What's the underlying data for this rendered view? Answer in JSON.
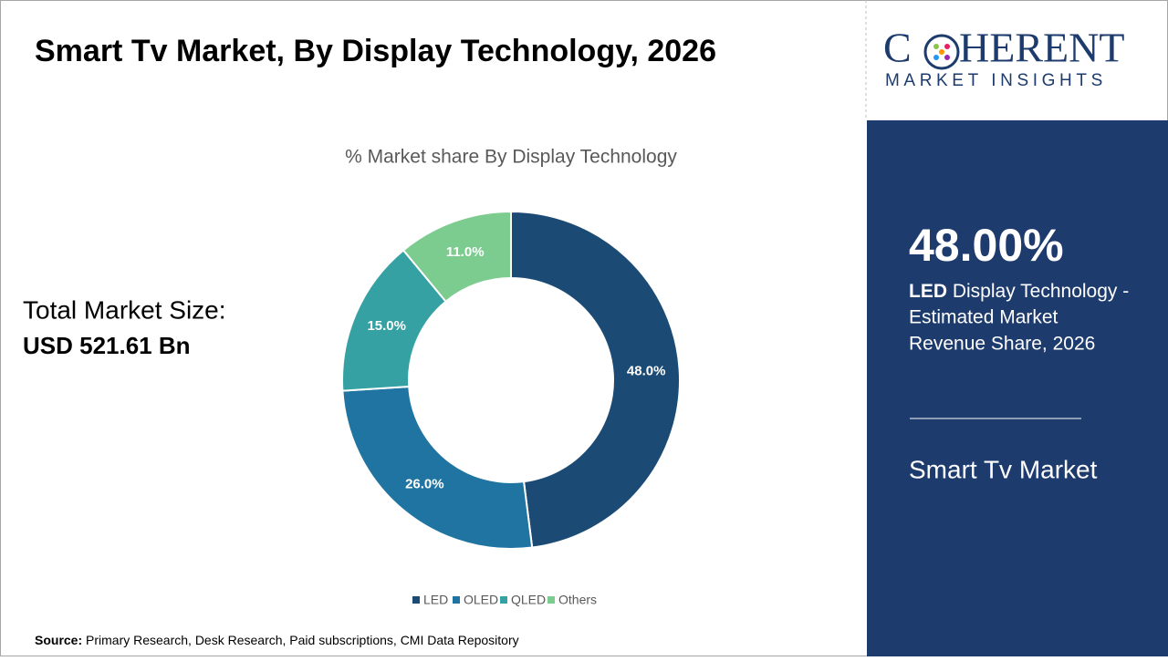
{
  "page_title": "Smart Tv Market, By Display Technology, 2026",
  "market_size": {
    "label": "Total Market Size:",
    "value": "USD 521.61 Bn"
  },
  "logo": {
    "left": "C",
    "right": "HERENT",
    "tagline": "MARKET INSIGHTS"
  },
  "highlight": {
    "value": "48.00%",
    "segment": "LED",
    "lines": [
      "Display Technology -",
      "Estimated Market",
      "Revenue Share, 2026"
    ],
    "market": "Smart Tv Market"
  },
  "source": {
    "label": "Source:",
    "text": "Primary Research, Desk Research, Paid subscriptions, CMI Data Repository"
  },
  "chart_data": {
    "type": "donut",
    "title": "% Market share By Display Technology",
    "categories": [
      "LED",
      "OLED",
      "QLED",
      "Others"
    ],
    "values": [
      48.0,
      26.0,
      15.0,
      11.0
    ],
    "value_labels": [
      "48.0%",
      "26.0%",
      "15.0%",
      "11.0%"
    ],
    "colors": [
      "#1b4a74",
      "#1f74a1",
      "#35a1a3",
      "#7ccb8f"
    ],
    "legend": "bottom"
  }
}
